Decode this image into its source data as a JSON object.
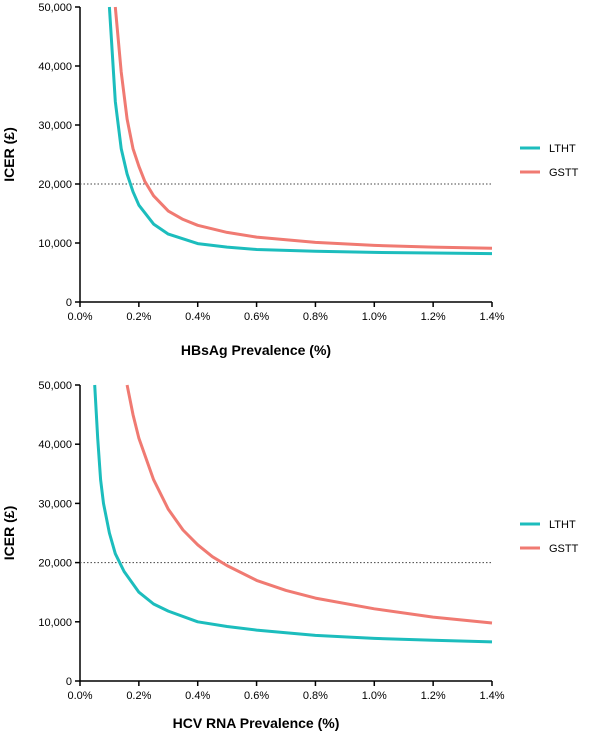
{
  "colors": {
    "LTHT": "#1cbdbd",
    "GSTT": "#f07a72",
    "axis": "#000000",
    "threshold": "#444444"
  },
  "chart_data": [
    {
      "type": "line",
      "xlabel": "HBsAg Prevalence (%)",
      "ylabel": "ICER (£)",
      "xlim": [
        0,
        1.4
      ],
      "ylim": [
        0,
        50000
      ],
      "x_ticks": [
        0,
        0.2,
        0.4,
        0.6,
        0.8,
        1.0,
        1.2,
        1.4
      ],
      "x_tick_labels": [
        "0.0%",
        "0.2%",
        "0.4%",
        "0.6%",
        "0.8%",
        "1.0%",
        "1.2%",
        "1.4%"
      ],
      "y_ticks": [
        0,
        10000,
        20000,
        30000,
        40000,
        50000
      ],
      "y_tick_labels": [
        "0",
        "10,000",
        "20,000",
        "30,000",
        "40,000",
        "50,000"
      ],
      "threshold": 20000,
      "grid": false,
      "legend_position": "right",
      "series": [
        {
          "name": "LTHT",
          "color_key": "LTHT",
          "x": [
            0.1,
            0.12,
            0.14,
            0.16,
            0.18,
            0.2,
            0.25,
            0.3,
            0.4,
            0.5,
            0.6,
            0.8,
            1.0,
            1.2,
            1.4
          ],
          "y": [
            50000,
            34000,
            26000,
            21700,
            18700,
            16400,
            13200,
            11500,
            9900,
            9300,
            8900,
            8600,
            8400,
            8300,
            8200
          ]
        },
        {
          "name": "GSTT",
          "color_key": "GSTT",
          "x": [
            0.12,
            0.14,
            0.16,
            0.18,
            0.2,
            0.22,
            0.25,
            0.3,
            0.35,
            0.4,
            0.5,
            0.6,
            0.8,
            1.0,
            1.2,
            1.4
          ],
          "y": [
            50000,
            39000,
            31000,
            26000,
            23000,
            20500,
            18000,
            15400,
            14000,
            13000,
            11800,
            11000,
            10100,
            9600,
            9300,
            9100
          ]
        }
      ]
    },
    {
      "type": "line",
      "xlabel": "HCV RNA Prevalence (%)",
      "ylabel": "ICER (£)",
      "xlim": [
        0,
        1.4
      ],
      "ylim": [
        0,
        50000
      ],
      "x_ticks": [
        0,
        0.2,
        0.4,
        0.6,
        0.8,
        1.0,
        1.2,
        1.4
      ],
      "x_tick_labels": [
        "0.0%",
        "0.2%",
        "0.4%",
        "0.6%",
        "0.8%",
        "1.0%",
        "1.2%",
        "1.4%"
      ],
      "y_ticks": [
        0,
        10000,
        20000,
        30000,
        40000,
        50000
      ],
      "y_tick_labels": [
        "0",
        "10,000",
        "20,000",
        "30,000",
        "40,000",
        "50,000"
      ],
      "threshold": 20000,
      "grid": false,
      "legend_position": "right",
      "series": [
        {
          "name": "LTHT",
          "color_key": "LTHT",
          "x": [
            0.05,
            0.06,
            0.07,
            0.08,
            0.1,
            0.12,
            0.15,
            0.2,
            0.25,
            0.3,
            0.4,
            0.5,
            0.6,
            0.8,
            1.0,
            1.2,
            1.4
          ],
          "y": [
            50000,
            41000,
            34000,
            30000,
            25000,
            21500,
            18500,
            15000,
            13000,
            11800,
            10000,
            9200,
            8600,
            7700,
            7200,
            6900,
            6600
          ]
        },
        {
          "name": "GSTT",
          "color_key": "GSTT",
          "x": [
            0.16,
            0.18,
            0.2,
            0.25,
            0.3,
            0.35,
            0.4,
            0.45,
            0.5,
            0.6,
            0.7,
            0.8,
            1.0,
            1.2,
            1.4
          ],
          "y": [
            50000,
            45000,
            41000,
            34000,
            29000,
            25500,
            23000,
            21000,
            19500,
            17000,
            15300,
            14000,
            12200,
            10800,
            9800
          ]
        }
      ]
    }
  ]
}
